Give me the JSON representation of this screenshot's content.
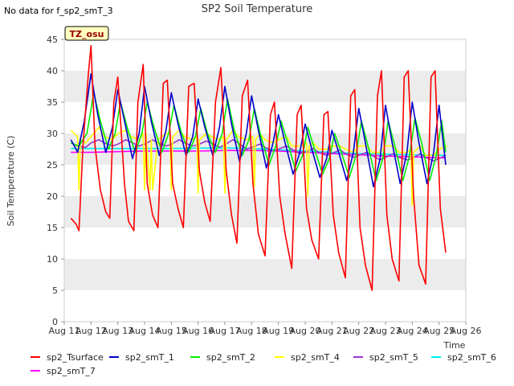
{
  "no_data_note": "No data for f_sp2_smT_3",
  "site_badge": "TZ_osu",
  "colors": {
    "sp2_Tsurface": "#ff0000",
    "sp2_smT_1": "#0000cc",
    "sp2_smT_2": "#00ee00",
    "sp2_smT_4": "#ffff00",
    "sp2_smT_5": "#9933cc",
    "sp2_smT_6": "#00eeee",
    "sp2_smT_7": "#ff00ff",
    "band": "#ececec",
    "badge_bg": "#ffffc0",
    "badge_text": "#990000"
  },
  "chart_data": {
    "type": "line",
    "title": "SP2 Soil Temperature",
    "xlabel": "Time",
    "ylabel": "Soil Temperature (C)",
    "xlim": [
      11,
      26
    ],
    "ylim": [
      0,
      45
    ],
    "x_ticks": [
      11,
      12,
      13,
      14,
      15,
      16,
      17,
      18,
      19,
      20,
      21,
      22,
      23,
      24,
      25,
      26
    ],
    "x_tick_labels": [
      "Aug 11",
      "Aug 12",
      "Aug 13",
      "Aug 14",
      "Aug 15",
      "Aug 16",
      "Aug 17",
      "Aug 18",
      "Aug 19",
      "Aug 20",
      "Aug 21",
      "Aug 22",
      "Aug 23",
      "Aug 24",
      "Aug 25",
      "Aug 26"
    ],
    "y_ticks": [
      0,
      5,
      10,
      15,
      20,
      25,
      30,
      35,
      40,
      45
    ],
    "y_tick_labels": [
      "0",
      "5",
      "10",
      "15",
      "20",
      "25",
      "30",
      "35",
      "40",
      "45"
    ],
    "grid": "horizontal alternating bands",
    "legend_position": "bottom",
    "series": [
      {
        "name": "sp2_Tsurface",
        "x": [
          11.25,
          11.45,
          11.55,
          11.7,
          11.9,
          12.0,
          12.15,
          12.35,
          12.55,
          12.7,
          12.85,
          13.0,
          13.25,
          13.4,
          13.6,
          13.75,
          13.95,
          14.1,
          14.3,
          14.5,
          14.7,
          14.85,
          15.05,
          15.25,
          15.45,
          15.65,
          15.85,
          16.05,
          16.25,
          16.45,
          16.65,
          16.85,
          17.05,
          17.25,
          17.45,
          17.65,
          17.85,
          18.05,
          18.25,
          18.5,
          18.7,
          18.85,
          19.05,
          19.25,
          19.5,
          19.7,
          19.85,
          20.05,
          20.25,
          20.5,
          20.7,
          20.85,
          21.05,
          21.25,
          21.5,
          21.7,
          21.85,
          22.05,
          22.25,
          22.5,
          22.7,
          22.85,
          23.05,
          23.25,
          23.5,
          23.7,
          23.85,
          24.05,
          24.25,
          24.5,
          24.7,
          24.85,
          25.05,
          25.25
        ],
        "y": [
          16.5,
          15.5,
          14.5,
          28,
          39.5,
          44,
          28,
          21,
          17.5,
          16.5,
          35,
          39,
          22,
          16,
          14.5,
          35,
          41,
          22,
          17,
          15,
          38,
          38.5,
          22,
          18,
          15,
          37.5,
          38,
          24,
          19,
          16,
          35,
          40.5,
          24,
          17,
          12.5,
          36,
          38.5,
          22,
          14,
          10.5,
          33,
          35,
          20,
          14,
          8.5,
          33,
          34.5,
          18,
          13,
          10,
          33,
          33.5,
          17,
          11,
          7,
          36,
          37,
          15,
          9,
          5,
          36,
          40,
          17,
          10,
          6.5,
          39,
          40,
          20,
          9,
          6,
          39,
          40,
          18,
          11
        ]
      },
      {
        "name": "sp2_smT_1",
        "x": [
          11.25,
          11.5,
          11.75,
          12.0,
          12.25,
          12.55,
          12.8,
          13.0,
          13.25,
          13.55,
          13.8,
          14.0,
          14.25,
          14.55,
          14.8,
          15.0,
          15.25,
          15.55,
          15.8,
          16.0,
          16.25,
          16.55,
          16.8,
          17.0,
          17.25,
          17.55,
          17.8,
          18.0,
          18.25,
          18.55,
          18.8,
          19.0,
          19.25,
          19.55,
          19.8,
          20.0,
          20.25,
          20.55,
          20.8,
          21.0,
          21.25,
          21.55,
          21.8,
          22.0,
          22.25,
          22.55,
          22.8,
          23.0,
          23.25,
          23.55,
          23.8,
          24.0,
          24.25,
          24.55,
          24.8,
          25.0,
          25.25
        ],
        "y": [
          29,
          27,
          32,
          39.5,
          33,
          27,
          31,
          37,
          32,
          26,
          30,
          37.5,
          32,
          26.5,
          30.5,
          36.5,
          31.5,
          26.5,
          29.5,
          35.5,
          31,
          26.5,
          31,
          37.5,
          31.5,
          25.5,
          30,
          36,
          30.5,
          24.5,
          28.5,
          33,
          28.5,
          23.5,
          27,
          31.5,
          27.5,
          23,
          26,
          30.5,
          27,
          22.5,
          27,
          34,
          28.5,
          21.5,
          26,
          34.5,
          28.5,
          22,
          27,
          35,
          28.5,
          22,
          27,
          34.5,
          25
        ]
      },
      {
        "name": "sp2_smT_2",
        "x": [
          11.25,
          11.55,
          11.85,
          12.1,
          12.35,
          12.65,
          12.9,
          13.1,
          13.35,
          13.65,
          13.9,
          14.1,
          14.35,
          14.65,
          14.9,
          15.1,
          15.35,
          15.65,
          15.9,
          16.1,
          16.35,
          16.65,
          16.9,
          17.1,
          17.35,
          17.65,
          17.9,
          18.1,
          18.35,
          18.65,
          18.9,
          19.1,
          19.35,
          19.65,
          19.9,
          20.1,
          20.35,
          20.65,
          20.9,
          21.1,
          21.35,
          21.65,
          21.9,
          22.1,
          22.35,
          22.65,
          22.9,
          23.1,
          23.35,
          23.65,
          23.9,
          24.1,
          24.35,
          24.65,
          24.9,
          25.1,
          25.25
        ],
        "y": [
          28.5,
          28,
          30,
          36.5,
          32,
          27.5,
          30,
          35,
          31,
          27,
          30,
          35,
          31,
          27,
          30,
          34.5,
          30.5,
          27,
          29.5,
          34,
          30,
          27,
          30,
          35.5,
          30.5,
          26.5,
          29,
          34,
          29.5,
          25,
          28,
          32,
          28.5,
          24,
          26.5,
          31,
          27.5,
          23.5,
          26,
          30,
          27,
          23,
          26.5,
          32,
          28,
          22.5,
          26,
          32,
          28,
          22.5,
          26.5,
          32.5,
          28.5,
          22.5,
          26.5,
          32,
          27
        ]
      },
      {
        "name": "sp2_smT_4",
        "x": [
          11.25,
          11.5,
          11.55,
          11.6,
          11.8,
          12.0,
          12.3,
          12.5,
          12.8,
          13.0,
          13.3,
          13.5,
          13.8,
          13.95,
          14.0,
          14.05,
          14.2,
          14.25,
          14.3,
          14.5,
          14.8,
          14.95,
          15.0,
          15.05,
          15.3,
          15.5,
          15.8,
          15.95,
          16.0,
          16.05,
          16.3,
          16.5,
          16.8,
          16.95,
          17.0,
          17.05,
          17.3,
          17.5,
          17.8,
          18.05,
          18.1,
          18.15,
          18.3,
          18.5,
          18.8,
          19.0,
          19.3,
          19.5,
          19.8,
          20.05,
          20.1,
          20.15,
          20.3,
          20.5,
          20.8,
          21.0,
          21.3,
          21.5,
          21.8,
          22.0,
          22.3,
          22.5,
          22.8,
          23.0,
          23.3,
          23.5,
          23.8,
          23.95,
          24.0,
          24.05,
          24.3,
          24.5,
          24.8,
          25.0,
          25.3
        ],
        "y": [
          30.5,
          29.5,
          21,
          29,
          28.5,
          29.5,
          31,
          29.5,
          29,
          30,
          30.5,
          29.5,
          29,
          30,
          21,
          30,
          21,
          29,
          21,
          29,
          30,
          30,
          21,
          29.5,
          30.5,
          29.5,
          29,
          29.5,
          20.5,
          29,
          30,
          29.5,
          29,
          29.5,
          20.5,
          29,
          30.5,
          29.5,
          29,
          29.5,
          21.5,
          29,
          30,
          29,
          28.5,
          29,
          29.5,
          28,
          28,
          28.5,
          20,
          28,
          28.5,
          27.5,
          27.5,
          28,
          28,
          27.5,
          27,
          28,
          28,
          27,
          27,
          28,
          28,
          27,
          27,
          27.5,
          18.5,
          27,
          28,
          26.5,
          26.5,
          27.5,
          28
        ]
      },
      {
        "name": "sp2_smT_5",
        "x": [
          11.25,
          11.5,
          11.8,
          12.0,
          12.3,
          12.5,
          12.8,
          13.0,
          13.3,
          13.5,
          13.8,
          14.0,
          14.3,
          14.5,
          14.8,
          15.0,
          15.3,
          15.5,
          15.8,
          16.0,
          16.3,
          16.5,
          16.8,
          17.0,
          17.3,
          17.5,
          17.8,
          18.0,
          18.3,
          18.5,
          18.8,
          19.0,
          19.3,
          19.5,
          19.8,
          20.0,
          20.3,
          20.5,
          20.8,
          21.0,
          21.3,
          21.5,
          21.8,
          22.0,
          22.3,
          22.5,
          22.8,
          23.0,
          23.3,
          23.5,
          23.8,
          24.0,
          24.3,
          24.5,
          24.8,
          25.0,
          25.25
        ],
        "y": [
          28.5,
          28,
          27.8,
          28.5,
          29,
          28.5,
          28,
          28.3,
          29,
          28.6,
          28,
          28.3,
          29,
          28.5,
          28,
          28.3,
          29,
          28.5,
          28,
          28.2,
          28.8,
          28.5,
          27.8,
          28.2,
          29,
          28.5,
          27.5,
          27.8,
          28.3,
          27.8,
          27.2,
          27.5,
          28,
          27.5,
          26.8,
          27,
          27.6,
          27,
          26.5,
          26.8,
          27.4,
          26.8,
          26.2,
          26.5,
          27,
          26.5,
          25.8,
          26.2,
          26.8,
          26.2,
          25.8,
          26,
          26.8,
          26.2,
          25.6,
          26,
          26.5
        ]
      },
      {
        "name": "sp2_smT_6",
        "x": [
          11.25,
          13.0,
          15.0,
          17.0,
          18.0,
          19.0,
          20.0,
          21.0,
          22.0,
          23.0,
          24.0,
          25.25
        ],
        "y": [
          27.6,
          27.6,
          27.6,
          27.7,
          27.6,
          27.4,
          27.2,
          27.0,
          26.8,
          26.7,
          26.6,
          26.5
        ]
      },
      {
        "name": "sp2_smT_7",
        "x": [
          11.25,
          12.0,
          13.0,
          14.0,
          15.0,
          16.0,
          17.0,
          18.0,
          19.0,
          20.0,
          21.0,
          22.0,
          23.0,
          24.0,
          25.25
        ],
        "y": [
          27.0,
          27.0,
          27.1,
          27.2,
          27.2,
          27.2,
          27.3,
          27.3,
          27.2,
          27.0,
          26.8,
          26.6,
          26.4,
          26.3,
          26.1
        ]
      }
    ]
  }
}
